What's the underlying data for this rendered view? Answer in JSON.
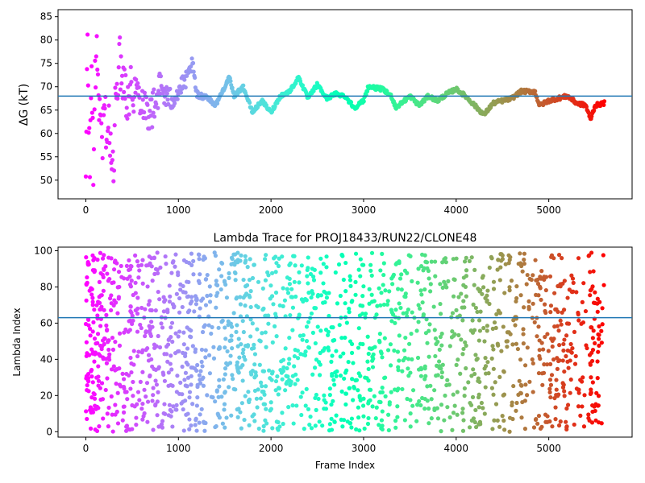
{
  "chart_data": [
    {
      "type": "scatter",
      "title": "",
      "xlabel": "",
      "ylabel": "ΔG (kT)",
      "xlim": [
        -300,
        5900
      ],
      "ylim": [
        46,
        86.5
      ],
      "xticks": [
        0,
        1000,
        2000,
        3000,
        4000,
        5000
      ],
      "yticks": [
        50,
        55,
        60,
        65,
        70,
        75,
        80,
        85
      ],
      "reference_line": 68,
      "colormap": "rainbow (red at early frames, violet at late frames)",
      "reference_line_color": "#1f77b4",
      "trace_anchors": [
        {
          "x": 0,
          "y": 48
        },
        {
          "x": 20,
          "y": 80
        },
        {
          "x": 40,
          "y": 52
        },
        {
          "x": 60,
          "y": 72
        },
        {
          "x": 80,
          "y": 56
        },
        {
          "x": 120,
          "y": 80
        },
        {
          "x": 160,
          "y": 58
        },
        {
          "x": 200,
          "y": 64
        },
        {
          "x": 240,
          "y": 62
        },
        {
          "x": 280,
          "y": 55
        },
        {
          "x": 300,
          "y": 50
        },
        {
          "x": 330,
          "y": 73
        },
        {
          "x": 380,
          "y": 75
        },
        {
          "x": 450,
          "y": 68
        },
        {
          "x": 500,
          "y": 70
        },
        {
          "x": 600,
          "y": 68
        },
        {
          "x": 700,
          "y": 64
        },
        {
          "x": 800,
          "y": 70
        },
        {
          "x": 900,
          "y": 67
        },
        {
          "x": 1000,
          "y": 69
        },
        {
          "x": 1100,
          "y": 72
        },
        {
          "x": 1150,
          "y": 75
        },
        {
          "x": 1200,
          "y": 68
        },
        {
          "x": 1300,
          "y": 68
        },
        {
          "x": 1400,
          "y": 66
        },
        {
          "x": 1500,
          "y": 70
        },
        {
          "x": 1550,
          "y": 72
        },
        {
          "x": 1600,
          "y": 68
        },
        {
          "x": 1700,
          "y": 70
        },
        {
          "x": 1800,
          "y": 64.5
        },
        {
          "x": 1900,
          "y": 67
        },
        {
          "x": 2000,
          "y": 64.5
        },
        {
          "x": 2100,
          "y": 68
        },
        {
          "x": 2200,
          "y": 69
        },
        {
          "x": 2300,
          "y": 72
        },
        {
          "x": 2400,
          "y": 67.5
        },
        {
          "x": 2500,
          "y": 70.5
        },
        {
          "x": 2600,
          "y": 67.5
        },
        {
          "x": 2700,
          "y": 68.5
        },
        {
          "x": 2800,
          "y": 68
        },
        {
          "x": 2900,
          "y": 65.5
        },
        {
          "x": 3000,
          "y": 67
        },
        {
          "x": 3050,
          "y": 70
        },
        {
          "x": 3200,
          "y": 69.5
        },
        {
          "x": 3300,
          "y": 68
        },
        {
          "x": 3350,
          "y": 65.5
        },
        {
          "x": 3500,
          "y": 68
        },
        {
          "x": 3600,
          "y": 66
        },
        {
          "x": 3700,
          "y": 68
        },
        {
          "x": 3800,
          "y": 67
        },
        {
          "x": 3900,
          "y": 68.5
        },
        {
          "x": 4000,
          "y": 69.5
        },
        {
          "x": 4100,
          "y": 68
        },
        {
          "x": 4200,
          "y": 66
        },
        {
          "x": 4300,
          "y": 64
        },
        {
          "x": 4400,
          "y": 66.5
        },
        {
          "x": 4500,
          "y": 67
        },
        {
          "x": 4600,
          "y": 67.5
        },
        {
          "x": 4700,
          "y": 69
        },
        {
          "x": 4850,
          "y": 69
        },
        {
          "x": 4900,
          "y": 66
        },
        {
          "x": 5000,
          "y": 67
        },
        {
          "x": 5100,
          "y": 67.5
        },
        {
          "x": 5200,
          "y": 68
        },
        {
          "x": 5300,
          "y": 66.5
        },
        {
          "x": 5400,
          "y": 66
        },
        {
          "x": 5450,
          "y": 63
        },
        {
          "x": 5500,
          "y": 66
        },
        {
          "x": 5600,
          "y": 66.5
        }
      ],
      "sample_count": 900
    },
    {
      "type": "scatter",
      "title": "Lambda Trace for PROJ18433/RUN22/CLONE48",
      "xlabel": "Frame Index",
      "ylabel": "Lambda Index",
      "xlim": [
        -300,
        5900
      ],
      "ylim": [
        -3,
        102
      ],
      "xticks": [
        0,
        1000,
        2000,
        3000,
        4000,
        5000
      ],
      "yticks": [
        0,
        20,
        40,
        60,
        80,
        100
      ],
      "reference_line": 63,
      "colormap": "rainbow (red at early frames, violet at late frames)",
      "reference_line_color": "#1f77b4",
      "x_range": [
        0,
        5600
      ],
      "y_range": [
        0,
        99
      ],
      "sample_count": 1800
    }
  ]
}
